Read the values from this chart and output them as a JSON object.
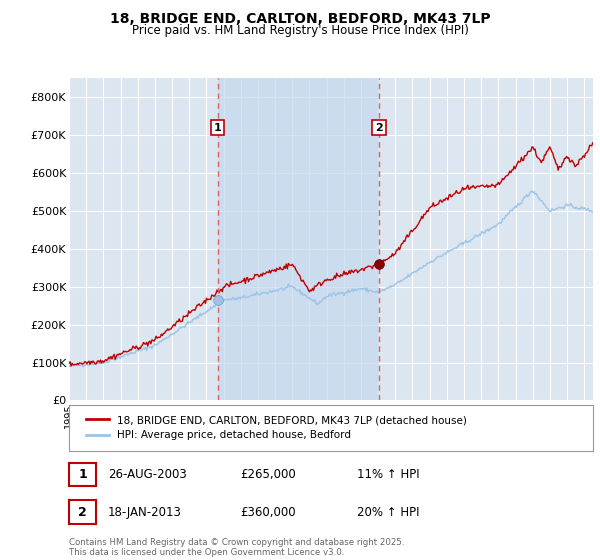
{
  "title": "18, BRIDGE END, CARLTON, BEDFORD, MK43 7LP",
  "subtitle": "Price paid vs. HM Land Registry's House Price Index (HPI)",
  "background_color": "#ffffff",
  "plot_bg_color": "#dce6f1",
  "shaded_region_color": "#c5d8ee",
  "grid_color": "#ffffff",
  "ylim": [
    0,
    850000
  ],
  "yticks": [
    0,
    100000,
    200000,
    300000,
    400000,
    500000,
    600000,
    700000,
    800000
  ],
  "ytick_labels": [
    "£0",
    "£100K",
    "£200K",
    "£300K",
    "£400K",
    "£500K",
    "£600K",
    "£700K",
    "£800K"
  ],
  "legend_label_red": "18, BRIDGE END, CARLTON, BEDFORD, MK43 7LP (detached house)",
  "legend_label_blue": "HPI: Average price, detached house, Bedford",
  "marker1_x": 2003.65,
  "marker1_y": 265000,
  "marker1_label": "1",
  "marker2_x": 2013.05,
  "marker2_y": 360000,
  "marker2_label": "2",
  "annotation1_date": "26-AUG-2003",
  "annotation1_price": "£265,000",
  "annotation1_hpi": "11% ↑ HPI",
  "annotation2_date": "18-JAN-2013",
  "annotation2_price": "£360,000",
  "annotation2_hpi": "20% ↑ HPI",
  "footer": "Contains HM Land Registry data © Crown copyright and database right 2025.\nThis data is licensed under the Open Government Licence v3.0.",
  "red_line_color": "#c00000",
  "blue_line_color": "#9dc3e6",
  "marker_box_color": "#c00000",
  "vline_color": "#e06060",
  "xlim_left": 1995,
  "xlim_right": 2025.5
}
